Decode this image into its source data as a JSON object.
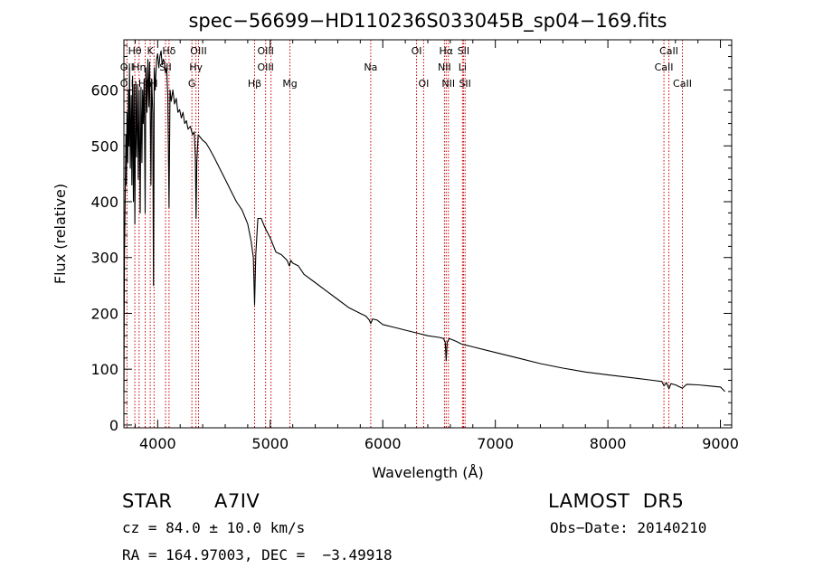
{
  "chart_data": {
    "type": "line",
    "title": "spec−56699−HD110236S033045B_sp04−169.fits",
    "xlabel": "Wavelength (Å)",
    "ylabel": "Flux (relative)",
    "xlim": [
      3700,
      9100
    ],
    "ylim": [
      -5,
      690
    ],
    "x_ticks": [
      4000,
      5000,
      6000,
      7000,
      8000,
      9000
    ],
    "x_tick_labels": [
      "4000",
      "5000",
      "6000",
      "7000",
      "8000",
      "9000"
    ],
    "y_ticks": [
      0,
      100,
      200,
      300,
      400,
      500,
      600
    ],
    "y_tick_labels": [
      "0",
      "100",
      "200",
      "300",
      "400",
      "500",
      "600"
    ],
    "grid": false,
    "series": [
      {
        "x": [
          3700,
          3705,
          3712,
          3718,
          3722,
          3727,
          3734,
          3740,
          3745,
          3750,
          3757,
          3765,
          3771,
          3777,
          3784,
          3790,
          3797,
          3805,
          3812,
          3820,
          3828,
          3836,
          3845,
          3852,
          3860,
          3866,
          3872,
          3880,
          3889,
          3895,
          3905,
          3913,
          3922,
          3928,
          3934,
          3940,
          3947,
          3956,
          3963,
          3970,
          3978,
          3990,
          4000,
          4010,
          4020,
          4030,
          4040,
          4050,
          4060,
          4070,
          4080,
          4090,
          4101,
          4110,
          4120,
          4135,
          4150,
          4165,
          4180,
          4195,
          4210,
          4225,
          4240,
          4255,
          4270,
          4290,
          4310,
          4325,
          4335,
          4341,
          4348,
          4360,
          4380,
          4400,
          4430,
          4460,
          4500,
          4550,
          4600,
          4650,
          4700,
          4750,
          4800,
          4830,
          4850,
          4861,
          4872,
          4890,
          4920,
          4950,
          5000,
          5050,
          5100,
          5150,
          5170,
          5183,
          5200,
          5250,
          5300,
          5400,
          5500,
          5600,
          5700,
          5800,
          5850,
          5880,
          5893,
          5910,
          5950,
          6000,
          6100,
          6200,
          6300,
          6400,
          6500,
          6540,
          6555,
          6563,
          6572,
          6590,
          6650,
          6700,
          6800,
          7000,
          7200,
          7400,
          7600,
          7800,
          8000,
          8200,
          8400,
          8480,
          8498,
          8520,
          8542,
          8560,
          8600,
          8662,
          8700,
          8800,
          8900,
          9000,
          9040
        ],
        "y": [
          60,
          300,
          420,
          520,
          430,
          560,
          470,
          600,
          500,
          640,
          460,
          590,
          430,
          625,
          400,
          610,
          360,
          615,
          480,
          610,
          440,
          600,
          380,
          605,
          470,
          600,
          540,
          620,
          380,
          640,
          560,
          655,
          570,
          650,
          560,
          430,
          620,
          560,
          250,
          640,
          600,
          655,
          665,
          640,
          660,
          670,
          645,
          655,
          650,
          630,
          640,
          590,
          390,
          600,
          580,
          600,
          575,
          585,
          560,
          565,
          550,
          560,
          540,
          545,
          530,
          535,
          520,
          525,
          480,
          370,
          470,
          520,
          515,
          510,
          505,
          495,
          480,
          460,
          440,
          420,
          400,
          385,
          360,
          330,
          300,
          215,
          305,
          370,
          370,
          355,
          335,
          310,
          305,
          295,
          285,
          295,
          290,
          285,
          270,
          255,
          240,
          225,
          210,
          200,
          195,
          188,
          182,
          190,
          188,
          180,
          175,
          170,
          165,
          160,
          157,
          155,
          148,
          115,
          148,
          155,
          150,
          145,
          140,
          130,
          120,
          110,
          102,
          95,
          90,
          85,
          80,
          78,
          70,
          76,
          65,
          74,
          72,
          66,
          73,
          72,
          70,
          68,
          60
        ]
      }
    ],
    "spectral_lines": [
      {
        "label": "Hθ",
        "x": 3797,
        "row": 0
      },
      {
        "label": "OII",
        "x": 3727,
        "row": 1
      },
      {
        "label": "OII",
        "x": 3727,
        "row": 2
      },
      {
        "label": "Hη",
        "x": 3835,
        "row": 1
      },
      {
        "label": "Hh",
        "x": 3889,
        "row": 2
      },
      {
        "label": "K",
        "x": 3934,
        "row": 0
      },
      {
        "label": "H",
        "x": 3968,
        "row": 2
      },
      {
        "label": "Hδ",
        "x": 4101,
        "row": 0
      },
      {
        "label": "SII",
        "x": 4070,
        "row": 1
      },
      {
        "label": "OIII",
        "x": 4363,
        "row": 0
      },
      {
        "label": "Hγ",
        "x": 4340,
        "row": 1
      },
      {
        "label": "G",
        "x": 4304,
        "row": 2
      },
      {
        "label": "OIII",
        "x": 4959,
        "row": 0
      },
      {
        "label": "OIII",
        "x": 4959,
        "row": 1
      },
      {
        "label": "Hβ",
        "x": 4861,
        "row": 2
      },
      {
        "label": "Mg",
        "x": 5175,
        "row": 2
      },
      {
        "label": "Na",
        "x": 5893,
        "row": 1
      },
      {
        "label": "OI",
        "x": 6300,
        "row": 0
      },
      {
        "label": "OI",
        "x": 6363,
        "row": 2
      },
      {
        "label": "Hα",
        "x": 6563,
        "row": 0
      },
      {
        "label": "NII",
        "x": 6548,
        "row": 1
      },
      {
        "label": "NII",
        "x": 6583,
        "row": 2
      },
      {
        "label": "SII",
        "x": 6717,
        "row": 0
      },
      {
        "label": "Li",
        "x": 6708,
        "row": 1
      },
      {
        "label": "SII",
        "x": 6731,
        "row": 2
      },
      {
        "label": "CaII",
        "x": 8542,
        "row": 0
      },
      {
        "label": "CaII",
        "x": 8498,
        "row": 1
      },
      {
        "label": "CaII",
        "x": 8662,
        "row": 2
      }
    ],
    "line_positions": [
      3727,
      3797,
      3835,
      3889,
      3934,
      3968,
      4070,
      4101,
      4304,
      4340,
      4363,
      4861,
      4959,
      5007,
      5175,
      5893,
      6300,
      6363,
      6548,
      6563,
      6583,
      6708,
      6717,
      6731,
      8498,
      8542,
      8662
    ],
    "line_color": "#cc0000"
  },
  "info": {
    "object_type": "STAR",
    "spectral_class": "A7IV",
    "survey": "LAMOST  DR5",
    "redshift": "cz = 84.0 ± 10.0 km/s",
    "obs_date": "Obs−Date: 20140210",
    "coords": "RA = 164.97003, DEC =  −3.49918"
  }
}
